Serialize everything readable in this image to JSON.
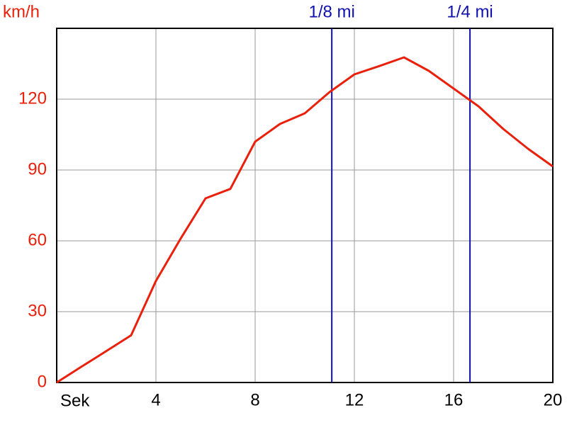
{
  "chart_data": {
    "type": "line",
    "y_label": "km/h",
    "x_label": "Sek",
    "x": [
      0,
      1,
      2,
      3,
      4,
      5,
      6,
      7,
      8,
      9,
      10,
      11,
      12,
      13,
      14,
      15,
      16,
      17,
      18,
      19,
      20
    ],
    "values": [
      0,
      6.7,
      13.3,
      20,
      43,
      61,
      78,
      82,
      102,
      109.5,
      114,
      123,
      130.5,
      134,
      137.7,
      132,
      124.5,
      117,
      107.4,
      99,
      91.5
    ],
    "color": "#e8200c",
    "markers": [
      {
        "label": "1/8 mi",
        "x": 11.09,
        "color": "#1010b0"
      },
      {
        "label": "1/4 mi",
        "x": 16.66,
        "color": "#1010b0"
      }
    ],
    "xlim": [
      0,
      20
    ],
    "ylim": [
      0,
      150
    ],
    "xticks": [
      4,
      8,
      12,
      16,
      20
    ],
    "yticks": [
      0,
      30,
      60,
      90,
      120
    ],
    "grid": true,
    "tick_color_y": "#e8200c",
    "tick_color_x": "#000000"
  }
}
